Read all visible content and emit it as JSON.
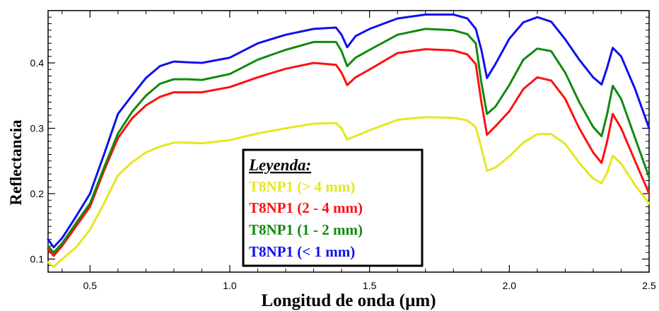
{
  "chart_data": {
    "type": "line",
    "xlabel": "Longitud de onda (µm)",
    "ylabel": "Reflectancia",
    "xlim": [
      0.35,
      2.5
    ],
    "ylim": [
      0.08,
      0.48
    ],
    "xticks": [
      0.5,
      1.0,
      1.5,
      2.0,
      2.5
    ],
    "xtick_labels": [
      "0.5",
      "1.0",
      "1.5",
      "2.0",
      "2.5"
    ],
    "yticks": [
      0.1,
      0.2,
      0.3,
      0.4
    ],
    "ytick_labels": [
      "0.1",
      "0.2",
      "0.3",
      "0.4"
    ],
    "grid": false,
    "legend": {
      "title": "Leyenda:",
      "placement": "center-bottom",
      "entries": [
        {
          "label": "T8NP1 (> 4 mm)",
          "color": "#e6e620"
        },
        {
          "label": "T8NP1 (2 - 4 mm)",
          "color": "#ff1010"
        },
        {
          "label": "T8NP1 (1 - 2 mm)",
          "color": "#108a10"
        },
        {
          "label": "T8NP1 (< 1 mm)",
          "color": "#1010ee"
        }
      ]
    },
    "x": [
      0.35,
      0.37,
      0.4,
      0.45,
      0.5,
      0.55,
      0.6,
      0.65,
      0.7,
      0.75,
      0.8,
      0.85,
      0.9,
      1.0,
      1.1,
      1.2,
      1.3,
      1.38,
      1.4,
      1.42,
      1.45,
      1.5,
      1.6,
      1.7,
      1.8,
      1.85,
      1.88,
      1.9,
      1.92,
      1.95,
      2.0,
      2.05,
      2.1,
      2.15,
      2.2,
      2.25,
      2.3,
      2.33,
      2.35,
      2.37,
      2.4,
      2.45,
      2.5
    ],
    "series": [
      {
        "name": "T8NP1 (> 4 mm)",
        "color": "#e6e620",
        "values": [
          0.095,
          0.088,
          0.1,
          0.118,
          0.145,
          0.185,
          0.228,
          0.248,
          0.263,
          0.272,
          0.278,
          0.278,
          0.277,
          0.282,
          0.292,
          0.3,
          0.307,
          0.308,
          0.3,
          0.283,
          0.288,
          0.297,
          0.313,
          0.317,
          0.316,
          0.312,
          0.302,
          0.27,
          0.235,
          0.24,
          0.257,
          0.278,
          0.291,
          0.291,
          0.276,
          0.247,
          0.223,
          0.216,
          0.232,
          0.258,
          0.246,
          0.213,
          0.185
        ]
      },
      {
        "name": "T8NP1 (2 - 4 mm)",
        "color": "#ff1010",
        "values": [
          0.115,
          0.105,
          0.12,
          0.15,
          0.18,
          0.235,
          0.285,
          0.315,
          0.335,
          0.348,
          0.355,
          0.355,
          0.355,
          0.363,
          0.378,
          0.391,
          0.4,
          0.397,
          0.385,
          0.366,
          0.378,
          0.39,
          0.415,
          0.421,
          0.419,
          0.413,
          0.398,
          0.34,
          0.29,
          0.303,
          0.326,
          0.36,
          0.378,
          0.373,
          0.345,
          0.3,
          0.263,
          0.247,
          0.28,
          0.322,
          0.3,
          0.25,
          0.2
        ]
      },
      {
        "name": "T8NP1 (1 - 2 mm)",
        "color": "#108a10",
        "values": [
          0.12,
          0.11,
          0.124,
          0.155,
          0.185,
          0.24,
          0.292,
          0.325,
          0.35,
          0.368,
          0.375,
          0.375,
          0.374,
          0.383,
          0.405,
          0.42,
          0.432,
          0.432,
          0.418,
          0.395,
          0.408,
          0.42,
          0.443,
          0.452,
          0.45,
          0.444,
          0.43,
          0.37,
          0.322,
          0.333,
          0.366,
          0.405,
          0.422,
          0.418,
          0.385,
          0.34,
          0.302,
          0.288,
          0.322,
          0.365,
          0.345,
          0.285,
          0.225
        ]
      },
      {
        "name": "T8NP1 (< 1 mm)",
        "color": "#1010ee",
        "values": [
          0.13,
          0.118,
          0.132,
          0.165,
          0.2,
          0.26,
          0.322,
          0.35,
          0.377,
          0.395,
          0.402,
          0.401,
          0.4,
          0.408,
          0.43,
          0.443,
          0.452,
          0.454,
          0.443,
          0.424,
          0.441,
          0.452,
          0.468,
          0.474,
          0.474,
          0.468,
          0.452,
          0.42,
          0.377,
          0.398,
          0.437,
          0.462,
          0.47,
          0.463,
          0.436,
          0.405,
          0.378,
          0.367,
          0.393,
          0.423,
          0.41,
          0.36,
          0.3
        ]
      }
    ]
  }
}
